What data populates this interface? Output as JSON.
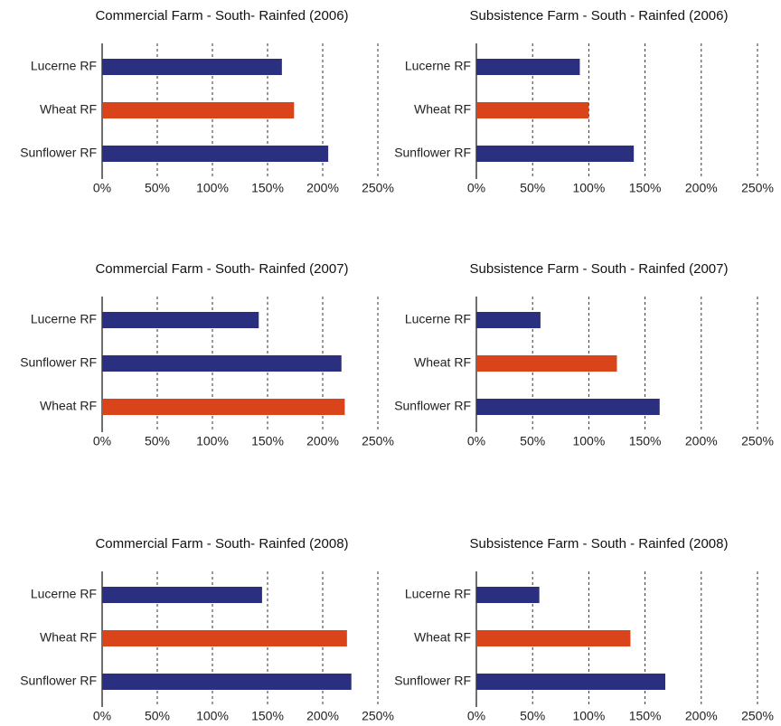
{
  "chart_data": [
    {
      "type": "bar",
      "title": "Commercial Farm - South- Rainfed (2006)",
      "categories": [
        "Lucerne RF",
        "Wheat RF",
        "Sunflower RF"
      ],
      "values": [
        163,
        174,
        205
      ],
      "colors": [
        "#2b2f7f",
        "#d9441a",
        "#2b2f7f"
      ],
      "xlim": [
        0,
        250
      ],
      "xticks": [
        {
          "value": 0,
          "label": "0%"
        },
        {
          "value": 50,
          "label": "50%"
        },
        {
          "value": 100,
          "label": "100%"
        },
        {
          "value": 150,
          "label": "150%"
        },
        {
          "value": 200,
          "label": "200%"
        },
        {
          "value": 250,
          "label": "250%"
        }
      ],
      "grid": true
    },
    {
      "type": "bar",
      "title": "Subsistence Farm - South - Rainfed (2006)",
      "categories": [
        "Lucerne RF",
        "Wheat RF",
        "Sunflower RF"
      ],
      "values": [
        92,
        100,
        140
      ],
      "colors": [
        "#2b2f7f",
        "#d9441a",
        "#2b2f7f"
      ],
      "xlim": [
        0,
        250
      ],
      "xticks": [
        {
          "value": 0,
          "label": "0%"
        },
        {
          "value": 50,
          "label": "50%"
        },
        {
          "value": 100,
          "label": "100%"
        },
        {
          "value": 150,
          "label": "150%"
        },
        {
          "value": 200,
          "label": "200%"
        },
        {
          "value": 250,
          "label": "250%"
        }
      ],
      "grid": true
    },
    {
      "type": "bar",
      "title": "Commercial Farm - South- Rainfed (2007)",
      "categories": [
        "Lucerne RF",
        "Sunflower RF",
        "Wheat RF"
      ],
      "values": [
        142,
        217,
        220
      ],
      "colors": [
        "#2b2f7f",
        "#2b2f7f",
        "#d9441a"
      ],
      "xlim": [
        0,
        250
      ],
      "xticks": [
        {
          "value": 0,
          "label": "0%"
        },
        {
          "value": 50,
          "label": "50%"
        },
        {
          "value": 100,
          "label": "100%"
        },
        {
          "value": 150,
          "label": "150%"
        },
        {
          "value": 200,
          "label": "200%"
        },
        {
          "value": 250,
          "label": "250%"
        }
      ],
      "grid": true
    },
    {
      "type": "bar",
      "title": "Subsistence Farm - South - Rainfed (2007)",
      "categories": [
        "Lucerne RF",
        "Wheat RF",
        "Sunflower RF"
      ],
      "values": [
        57,
        125,
        163
      ],
      "colors": [
        "#2b2f7f",
        "#d9441a",
        "#2b2f7f"
      ],
      "xlim": [
        0,
        250
      ],
      "xticks": [
        {
          "value": 0,
          "label": "0%"
        },
        {
          "value": 50,
          "label": "50%"
        },
        {
          "value": 100,
          "label": "100%"
        },
        {
          "value": 150,
          "label": "150%"
        },
        {
          "value": 200,
          "label": "200%"
        },
        {
          "value": 250,
          "label": "250%"
        }
      ],
      "grid": true
    },
    {
      "type": "bar",
      "title": "Commercial Farm - South- Rainfed (2008)",
      "categories": [
        "Lucerne RF",
        "Wheat RF",
        "Sunflower RF"
      ],
      "values": [
        145,
        222,
        226
      ],
      "colors": [
        "#2b2f7f",
        "#d9441a",
        "#2b2f7f"
      ],
      "xlim": [
        0,
        250
      ],
      "xticks": [
        {
          "value": 0,
          "label": "0%"
        },
        {
          "value": 50,
          "label": "50%"
        },
        {
          "value": 100,
          "label": "100%"
        },
        {
          "value": 150,
          "label": "150%"
        },
        {
          "value": 200,
          "label": "200%"
        },
        {
          "value": 250,
          "label": "250%"
        }
      ],
      "grid": true
    },
    {
      "type": "bar",
      "title": "Subsistence Farm - South - Rainfed (2008)",
      "categories": [
        "Lucerne RF",
        "Wheat RF",
        "Sunflower RF"
      ],
      "values": [
        56,
        137,
        168
      ],
      "colors": [
        "#2b2f7f",
        "#d9441a",
        "#2b2f7f"
      ],
      "xlim": [
        0,
        250
      ],
      "xticks": [
        {
          "value": 0,
          "label": "0%"
        },
        {
          "value": 50,
          "label": "50%"
        },
        {
          "value": 100,
          "label": "100%"
        },
        {
          "value": 150,
          "label": "150%"
        },
        {
          "value": 200,
          "label": "200%"
        },
        {
          "value": 250,
          "label": "250%"
        }
      ],
      "grid": true
    }
  ]
}
